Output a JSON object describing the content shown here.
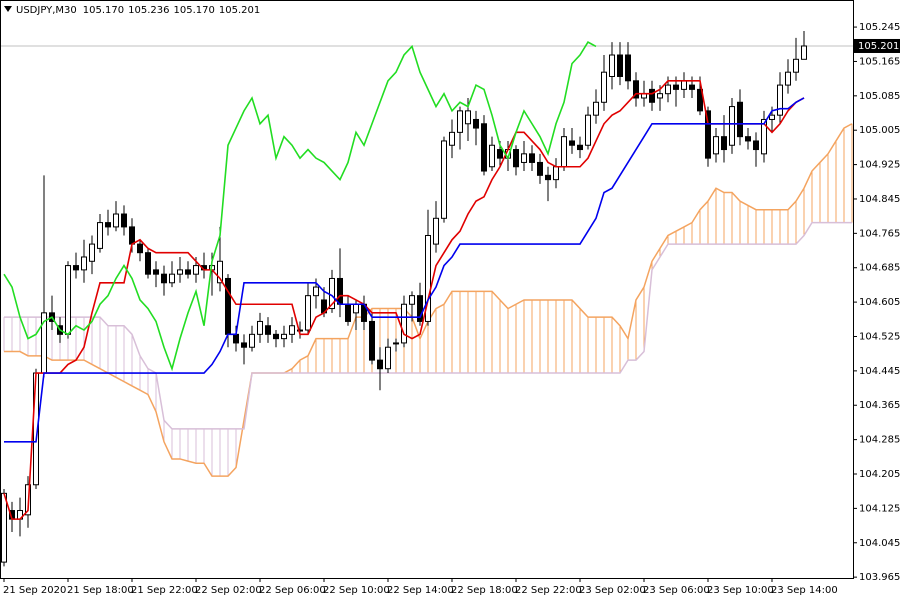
{
  "chart_data": {
    "type": "candlestick",
    "title": "USDJPY,M30",
    "ohlc_labels": [
      "105.170",
      "105.236",
      "105.170",
      "105.201"
    ],
    "categories": [
      "21 Sep 2020",
      null,
      null,
      null,
      null,
      null,
      null,
      null,
      "21 Sep 18:00",
      null,
      null,
      null,
      null,
      null,
      null,
      null,
      "21 Sep 22:00",
      null,
      null,
      null,
      null,
      null,
      null,
      null,
      "22 Sep 02:00",
      null,
      null,
      null,
      null,
      null,
      null,
      null,
      "22 Sep 06:00",
      null,
      null,
      null,
      null,
      null,
      null,
      null,
      "22 Sep 10:00",
      null,
      null,
      null,
      null,
      null,
      null,
      null,
      "22 Sep 14:00",
      null,
      null,
      null,
      null,
      null,
      null,
      null,
      "22 Sep 18:00",
      null,
      null,
      null,
      null,
      null,
      null,
      null,
      "22 Sep 22:00",
      null,
      null,
      null,
      null,
      null,
      null,
      null,
      "23 Sep 02:00",
      null,
      null,
      null,
      null,
      null,
      null,
      null,
      "23 Sep 06:00",
      null,
      null,
      null,
      null,
      null,
      null,
      null,
      "23 Sep 10:00",
      null,
      null,
      null,
      null,
      null,
      null,
      null,
      "23 Sep 14:00",
      null,
      null,
      null,
      null,
      null,
      null,
      null,
      null,
      null,
      null
    ],
    "open": [
      104.0,
      104.12,
      104.1,
      104.11,
      104.18,
      104.44,
      104.58,
      104.55,
      104.53,
      104.69,
      104.68,
      104.7,
      104.73,
      104.79,
      104.78,
      104.81,
      104.78,
      104.74,
      104.72,
      104.68,
      104.67,
      104.65,
      104.67,
      104.68,
      104.67,
      104.69,
      104.68,
      104.65,
      104.66,
      104.53,
      104.51,
      104.5,
      104.53,
      104.55,
      104.53,
      104.52,
      104.53,
      104.54,
      104.54,
      104.62,
      104.61,
      104.59,
      104.66,
      104.6,
      104.58,
      104.6,
      104.56,
      104.47,
      104.45,
      104.51,
      104.51,
      104.6,
      104.62,
      104.56,
      104.74,
      104.8,
      104.97,
      105.0,
      105.02,
      105.03,
      105.02,
      104.92,
      104.96,
      104.94,
      104.96,
      104.93,
      104.95,
      104.93,
      104.9,
      104.89,
      104.92,
      104.98,
      104.97,
      104.97,
      105.04,
      105.07,
      105.13,
      105.18,
      105.18,
      105.12,
      105.08,
      105.1,
      105.08,
      105.09,
      105.11,
      105.1,
      105.11,
      105.1,
      105.05,
      104.95,
      104.99,
      104.97,
      105.07,
      104.99,
      104.98,
      104.95,
      105.03,
      105.04,
      105.11,
      105.14,
      105.17,
      null,
      null,
      null,
      null,
      null,
      null
    ],
    "high": [
      104.17,
      104.14,
      104.15,
      104.2,
      104.45,
      104.9,
      104.62,
      104.57,
      104.7,
      104.72,
      104.75,
      104.76,
      104.81,
      104.82,
      104.84,
      104.83,
      104.8,
      104.75,
      104.73,
      104.7,
      104.69,
      104.7,
      104.71,
      104.7,
      104.71,
      104.72,
      104.72,
      104.78,
      104.67,
      104.55,
      104.53,
      104.55,
      104.58,
      104.57,
      104.54,
      104.55,
      104.57,
      104.56,
      104.65,
      104.66,
      104.64,
      104.68,
      104.73,
      104.62,
      104.61,
      104.62,
      104.58,
      104.5,
      104.52,
      104.52,
      104.62,
      104.63,
      104.65,
      104.82,
      104.84,
      104.99,
      105.03,
      105.06,
      105.08,
      105.05,
      105.04,
      104.99,
      104.98,
      104.98,
      104.97,
      104.98,
      104.97,
      104.95,
      104.92,
      104.94,
      105.01,
      105.01,
      104.99,
      105.06,
      105.1,
      105.18,
      105.21,
      105.21,
      105.21,
      105.14,
      105.12,
      105.12,
      105.11,
      105.13,
      105.13,
      105.14,
      105.13,
      105.13,
      105.06,
      105.01,
      105.04,
      105.08,
      105.1,
      105.01,
      105.0,
      105.05,
      105.06,
      105.14,
      105.17,
      105.22,
      105.236,
      null,
      null,
      null,
      null,
      null,
      null
    ],
    "low": [
      103.99,
      104.07,
      104.06,
      104.08,
      104.17,
      104.43,
      104.54,
      104.51,
      104.52,
      104.66,
      104.65,
      104.67,
      104.72,
      104.76,
      104.77,
      104.76,
      104.72,
      104.7,
      104.66,
      104.64,
      104.62,
      104.64,
      104.65,
      104.66,
      104.65,
      104.66,
      104.62,
      104.63,
      104.5,
      104.49,
      104.46,
      104.49,
      104.51,
      104.51,
      104.5,
      104.5,
      104.51,
      104.52,
      104.53,
      104.59,
      104.57,
      104.58,
      104.57,
      104.55,
      104.54,
      104.54,
      104.46,
      104.4,
      104.44,
      104.49,
      104.5,
      104.56,
      104.55,
      104.55,
      104.72,
      104.79,
      104.94,
      104.96,
      104.98,
      104.97,
      104.9,
      104.91,
      104.92,
      104.91,
      104.9,
      104.91,
      104.91,
      104.88,
      104.84,
      104.87,
      104.91,
      104.95,
      104.94,
      104.96,
      105.02,
      105.05,
      105.1,
      105.11,
      105.1,
      105.06,
      105.06,
      105.05,
      105.05,
      105.07,
      105.06,
      105.08,
      105.08,
      105.04,
      104.92,
      104.93,
      104.93,
      104.95,
      104.97,
      104.96,
      104.92,
      104.93,
      105.0,
      105.02,
      105.09,
      105.12,
      105.17,
      null,
      null,
      null,
      null,
      null,
      null
    ],
    "close": [
      104.16,
      104.1,
      104.12,
      104.18,
      104.44,
      104.58,
      104.56,
      104.53,
      104.69,
      104.68,
      104.71,
      104.74,
      104.79,
      104.78,
      104.81,
      104.78,
      104.74,
      104.72,
      104.67,
      104.67,
      104.65,
      104.67,
      104.68,
      104.67,
      104.69,
      104.68,
      104.69,
      104.7,
      104.53,
      104.51,
      104.5,
      104.53,
      104.56,
      104.53,
      104.52,
      104.53,
      104.55,
      104.54,
      104.62,
      104.64,
      104.58,
      104.66,
      104.6,
      104.56,
      104.6,
      104.56,
      104.47,
      104.45,
      104.5,
      104.51,
      104.6,
      104.62,
      104.56,
      104.76,
      104.8,
      104.98,
      105.0,
      105.05,
      105.05,
      105.01,
      104.91,
      104.97,
      104.94,
      104.96,
      104.92,
      104.95,
      104.93,
      104.9,
      104.89,
      104.92,
      104.99,
      104.97,
      104.96,
      105.04,
      105.07,
      105.14,
      105.18,
      105.13,
      105.12,
      105.08,
      105.09,
      105.07,
      105.09,
      105.11,
      105.1,
      105.12,
      105.1,
      105.05,
      104.94,
      104.99,
      104.96,
      105.06,
      104.99,
      104.98,
      104.96,
      105.03,
      105.04,
      105.11,
      105.14,
      105.17,
      105.201,
      null,
      null,
      null,
      null,
      null,
      null
    ],
    "up_color": "#ffffff",
    "down_color": "#000000",
    "series": [
      {
        "color": "#e00000",
        "values": [
          104.16,
          104.1,
          104.1,
          104.12,
          104.44,
          104.44,
          104.44,
          104.44,
          104.46,
          104.47,
          104.5,
          104.58,
          104.65,
          104.65,
          104.65,
          104.65,
          104.74,
          104.75,
          104.73,
          104.72,
          104.72,
          104.72,
          104.72,
          104.72,
          104.7,
          104.68,
          104.68,
          104.66,
          104.63,
          104.6,
          104.6,
          104.6,
          104.6,
          104.6,
          104.6,
          104.6,
          104.6,
          104.53,
          104.53,
          104.57,
          104.58,
          104.6,
          104.62,
          104.62,
          104.61,
          104.6,
          104.58,
          104.58,
          104.58,
          104.58,
          104.53,
          104.52,
          104.53,
          104.61,
          104.69,
          104.72,
          104.75,
          104.77,
          104.81,
          104.84,
          104.85,
          104.89,
          104.92,
          104.96,
          105.0,
          105.0,
          104.98,
          104.96,
          104.93,
          104.92,
          104.92,
          104.92,
          104.92,
          104.94,
          104.98,
          105.02,
          105.04,
          105.05,
          105.07,
          105.09,
          105.09,
          105.09,
          105.1,
          105.12,
          105.12,
          105.12,
          105.12,
          105.12,
          105.02,
          105.02,
          105.02,
          105.02,
          105.02,
          105.02,
          105.02,
          105.02,
          105.0,
          105.02,
          105.05,
          105.07,
          105.08,
          null,
          null,
          null,
          null,
          null,
          null
        ]
      },
      {
        "color": "#0000ee",
        "values": [
          104.28,
          104.28,
          104.28,
          104.28,
          104.28,
          104.44,
          104.44,
          104.44,
          104.44,
          104.44,
          104.44,
          104.44,
          104.44,
          104.44,
          104.44,
          104.44,
          104.44,
          104.44,
          104.44,
          104.44,
          104.44,
          104.44,
          104.44,
          104.44,
          104.44,
          104.44,
          104.46,
          104.49,
          104.53,
          104.53,
          104.65,
          104.65,
          104.65,
          104.65,
          104.65,
          104.65,
          104.65,
          104.65,
          104.65,
          104.65,
          104.63,
          104.62,
          104.6,
          104.6,
          104.6,
          104.6,
          104.57,
          104.57,
          104.57,
          104.57,
          104.57,
          104.57,
          104.57,
          104.61,
          104.64,
          104.69,
          104.71,
          104.74,
          104.74,
          104.74,
          104.74,
          104.74,
          104.74,
          104.74,
          104.74,
          104.74,
          104.74,
          104.74,
          104.74,
          104.74,
          104.74,
          104.74,
          104.74,
          104.77,
          104.8,
          104.86,
          104.87,
          104.9,
          104.93,
          104.96,
          104.99,
          105.02,
          105.02,
          105.02,
          105.02,
          105.02,
          105.02,
          105.02,
          105.02,
          105.02,
          105.02,
          105.02,
          105.02,
          105.02,
          105.02,
          105.02,
          105.05,
          105.055,
          105.055,
          105.07,
          105.08,
          null,
          null,
          null,
          null,
          null,
          null
        ]
      },
      {
        "color": "#22dd22",
        "values": [
          104.67,
          104.64,
          104.57,
          104.52,
          104.53,
          104.56,
          104.57,
          104.54,
          104.53,
          104.55,
          104.54,
          104.56,
          104.6,
          104.62,
          104.66,
          104.69,
          104.66,
          104.61,
          104.59,
          104.56,
          104.5,
          104.45,
          104.52,
          104.58,
          104.63,
          104.55,
          104.7,
          104.76,
          104.97,
          105.01,
          105.05,
          105.08,
          105.02,
          105.04,
          104.94,
          104.99,
          104.97,
          104.94,
          104.96,
          104.94,
          104.93,
          104.91,
          104.89,
          104.93,
          105.0,
          104.97,
          105.02,
          105.07,
          105.12,
          105.14,
          105.18,
          105.2,
          105.14,
          105.1,
          105.06,
          105.09,
          105.05,
          105.07,
          105.06,
          105.11,
          105.1,
          105.04,
          104.97,
          104.94,
          105.0,
          105.05,
          105.02,
          104.99,
          104.95,
          105.02,
          105.07,
          105.16,
          105.18,
          105.21,
          105.2,
          null,
          null,
          null,
          null,
          null,
          null,
          null,
          null,
          null,
          null,
          null,
          null,
          null,
          null,
          null,
          null,
          null,
          null,
          null,
          null,
          null,
          null,
          null,
          null,
          null,
          null,
          null,
          null,
          null,
          null,
          null,
          null
        ]
      }
    ],
    "span_a": {
      "color": "#f4a460",
      "values": [
        104.49,
        104.49,
        104.49,
        104.48,
        104.48,
        104.48,
        104.47,
        104.47,
        104.47,
        104.47,
        104.47,
        104.46,
        104.45,
        104.44,
        104.43,
        104.42,
        104.41,
        104.4,
        104.39,
        104.35,
        104.28,
        104.24,
        104.24,
        104.235,
        104.23,
        104.23,
        104.2,
        104.2,
        104.2,
        104.22,
        104.33,
        104.44,
        104.44,
        104.44,
        104.44,
        104.44,
        104.45,
        104.47,
        104.48,
        104.52,
        104.52,
        104.52,
        104.52,
        104.52,
        104.57,
        104.57,
        104.59,
        104.59,
        104.59,
        104.59,
        104.59,
        104.57,
        104.52,
        104.56,
        104.59,
        104.6,
        104.63,
        104.63,
        104.63,
        104.63,
        104.63,
        104.63,
        104.61,
        104.59,
        104.6,
        104.61,
        104.61,
        104.61,
        104.61,
        104.61,
        104.61,
        104.61,
        104.59,
        104.57,
        104.57,
        104.57,
        104.57,
        104.55,
        104.52,
        104.61,
        104.64,
        104.7,
        104.73,
        104.76,
        104.77,
        104.78,
        104.79,
        104.82,
        104.84,
        104.87,
        104.86,
        104.86,
        104.84,
        104.83,
        104.82,
        104.82,
        104.82,
        104.82,
        104.82,
        104.84,
        104.87,
        104.91,
        104.93,
        104.95,
        104.98,
        105.01,
        105.02
      ]
    },
    "span_b": {
      "color": "#d8bfd8",
      "values": [
        104.57,
        104.57,
        104.57,
        104.57,
        104.57,
        104.57,
        104.57,
        104.57,
        104.57,
        104.57,
        104.57,
        104.57,
        104.57,
        104.55,
        104.55,
        104.55,
        104.53,
        104.48,
        104.45,
        104.44,
        104.33,
        104.31,
        104.31,
        104.31,
        104.31,
        104.31,
        104.31,
        104.31,
        104.31,
        104.31,
        104.31,
        104.44,
        104.44,
        104.44,
        104.44,
        104.44,
        104.44,
        104.44,
        104.44,
        104.44,
        104.44,
        104.44,
        104.44,
        104.44,
        104.44,
        104.44,
        104.44,
        104.44,
        104.44,
        104.44,
        104.44,
        104.44,
        104.44,
        104.44,
        104.44,
        104.44,
        104.44,
        104.44,
        104.44,
        104.44,
        104.44,
        104.44,
        104.44,
        104.44,
        104.44,
        104.44,
        104.44,
        104.44,
        104.44,
        104.44,
        104.44,
        104.44,
        104.44,
        104.44,
        104.44,
        104.44,
        104.44,
        104.44,
        104.47,
        104.47,
        104.49,
        104.68,
        104.71,
        104.74,
        104.74,
        104.74,
        104.74,
        104.74,
        104.74,
        104.74,
        104.74,
        104.74,
        104.74,
        104.74,
        104.74,
        104.74,
        104.74,
        104.74,
        104.74,
        104.74,
        104.76,
        104.79,
        104.79,
        104.79,
        104.79,
        104.79,
        104.79
      ]
    },
    "last_price": 105.201,
    "ylim": [
      103.963,
      105.308
    ],
    "yticks": [
      105.245,
      105.165,
      105.085,
      105.005,
      104.925,
      104.845,
      104.765,
      104.685,
      104.605,
      104.525,
      104.445,
      104.365,
      104.285,
      104.205,
      104.125,
      104.045,
      103.965
    ],
    "grid": false
  }
}
